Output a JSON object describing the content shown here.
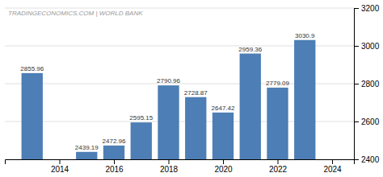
{
  "chart_data": {
    "type": "bar",
    "x": [
      2013,
      2015,
      2016,
      2017,
      2018,
      2019,
      2020,
      2021,
      2022,
      2023
    ],
    "values": [
      2855.96,
      2439.19,
      2472.96,
      2595.15,
      2790.96,
      2728.87,
      2647.42,
      2959.36,
      2779.09,
      3030.9
    ],
    "color": "#4d7eb5",
    "xlim": [
      2012.0,
      2024.8
    ],
    "xticks": [
      2014,
      2016,
      2018,
      2020,
      2022,
      2024
    ],
    "ylim": [
      2400,
      3200
    ],
    "yticks": [
      2400,
      2600,
      2800,
      3000,
      3200
    ],
    "grid": true,
    "data_labels": true,
    "annotations": [
      "TRADINGECONOMICS.COM | WORLD BANK"
    ]
  }
}
